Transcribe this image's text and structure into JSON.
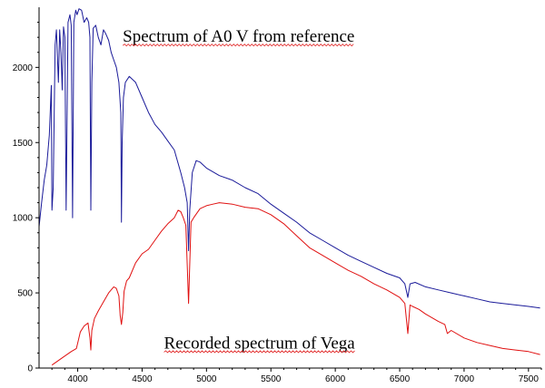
{
  "chart_data": {
    "type": "line",
    "title": "",
    "xlabel": "",
    "ylabel": "",
    "xlim": [
      3700,
      7600
    ],
    "ylim": [
      0,
      2400
    ],
    "grid": false,
    "xticks": [
      4000,
      4500,
      5000,
      5500,
      6000,
      6500,
      7000,
      7500
    ],
    "yticks": [
      0,
      500,
      1000,
      1500,
      2000
    ],
    "annotations": [
      {
        "text": "Spectrum of A0 V from reference",
        "x": 4350,
        "y": 2170
      },
      {
        "text": "Recorded spectrum of Vega",
        "x": 4670,
        "y": 130
      }
    ],
    "series": [
      {
        "color": "#1a1a99",
        "x": [
          3700,
          3720,
          3740,
          3760,
          3780,
          3795,
          3800,
          3810,
          3825,
          3835,
          3850,
          3860,
          3870,
          3880,
          3890,
          3900,
          3910,
          3925,
          3940,
          3950,
          3960,
          3970,
          3985,
          3995,
          4010,
          4030,
          4050,
          4070,
          4085,
          4095,
          4102,
          4110,
          4120,
          4140,
          4160,
          4180,
          4200,
          4220,
          4240,
          4260,
          4280,
          4300,
          4320,
          4335,
          4340,
          4345,
          4355,
          4370,
          4400,
          4450,
          4500,
          4550,
          4600,
          4650,
          4700,
          4750,
          4800,
          4830,
          4850,
          4861,
          4870,
          4890,
          4920,
          4950,
          5000,
          5100,
          5200,
          5300,
          5400,
          5500,
          5600,
          5700,
          5800,
          5900,
          6000,
          6100,
          6200,
          6300,
          6400,
          6500,
          6540,
          6563,
          6580,
          6620,
          6700,
          6800,
          6900,
          7000,
          7100,
          7200,
          7300,
          7400,
          7500,
          7590
        ],
        "y": [
          940,
          1100,
          1250,
          1350,
          1550,
          1880,
          1050,
          1200,
          2150,
          2250,
          1900,
          2250,
          2100,
          1850,
          2270,
          2200,
          1050,
          2300,
          2350,
          2280,
          1000,
          2300,
          2380,
          2350,
          2390,
          2380,
          2300,
          2330,
          2300,
          2200,
          1050,
          1900,
          2260,
          2280,
          2200,
          2150,
          2250,
          2220,
          2180,
          2100,
          2050,
          2000,
          1900,
          1700,
          970,
          1500,
          1800,
          1900,
          1940,
          1900,
          1800,
          1700,
          1620,
          1570,
          1510,
          1450,
          1300,
          1200,
          1100,
          780,
          1050,
          1300,
          1380,
          1370,
          1330,
          1280,
          1250,
          1200,
          1160,
          1090,
          1030,
          970,
          900,
          850,
          800,
          750,
          710,
          670,
          630,
          600,
          560,
          470,
          560,
          570,
          540,
          520,
          500,
          480,
          460,
          440,
          430,
          420,
          410,
          400
        ]
      },
      {
        "color": "#e01010",
        "x": [
          3800,
          3850,
          3900,
          3950,
          3990,
          4000,
          4020,
          4050,
          4080,
          4095,
          4102,
          4110,
          4130,
          4160,
          4200,
          4240,
          4280,
          4300,
          4320,
          4330,
          4340,
          4350,
          4360,
          4380,
          4400,
          4450,
          4500,
          4550,
          4600,
          4650,
          4700,
          4750,
          4780,
          4800,
          4820,
          4840,
          4861,
          4880,
          4900,
          4950,
          5000,
          5050,
          5100,
          5200,
          5300,
          5400,
          5500,
          5600,
          5700,
          5800,
          5900,
          6000,
          6100,
          6200,
          6300,
          6400,
          6500,
          6540,
          6563,
          6580,
          6600,
          6650,
          6700,
          6800,
          6850,
          6870,
          6900,
          7000,
          7100,
          7200,
          7300,
          7400,
          7500,
          7590
        ],
        "y": [
          20,
          50,
          80,
          110,
          130,
          165,
          240,
          280,
          300,
          200,
          120,
          250,
          330,
          380,
          440,
          500,
          540,
          530,
          480,
          350,
          290,
          370,
          510,
          580,
          600,
          700,
          760,
          790,
          850,
          910,
          960,
          1000,
          1050,
          1040,
          1000,
          950,
          430,
          970,
          1000,
          1060,
          1080,
          1090,
          1100,
          1090,
          1070,
          1060,
          1020,
          960,
          880,
          800,
          750,
          700,
          650,
          610,
          560,
          520,
          470,
          430,
          230,
          420,
          410,
          390,
          360,
          310,
          290,
          230,
          250,
          200,
          170,
          150,
          130,
          120,
          110,
          90
        ]
      }
    ]
  }
}
